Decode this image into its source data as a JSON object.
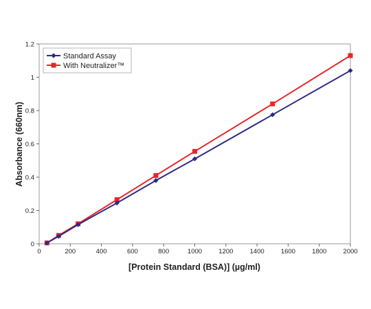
{
  "chart_data": {
    "type": "line",
    "xlabel": "[Protein Standard (BSA)] (µg/ml)",
    "ylabel": "Absorbance (660nm)",
    "xlim": [
      0,
      2000
    ],
    "ylim": [
      0,
      1.2
    ],
    "xticks": [
      0,
      200,
      400,
      600,
      800,
      1000,
      1200,
      1400,
      1600,
      1800,
      2000
    ],
    "yticks": [
      0,
      0.2,
      0.4,
      0.6,
      0.8,
      1,
      1.2
    ],
    "xtick_labels": [
      "0",
      "200",
      "400",
      "600",
      "800",
      "1000",
      "1200",
      "1400",
      "1600",
      "1800",
      "2000"
    ],
    "ytick_labels": [
      "0",
      "0.2",
      "0.4",
      "0.6",
      "0.8",
      "1",
      "1.2"
    ],
    "grid": false,
    "legend_position": "top-left",
    "series": [
      {
        "name": "Standard Assay",
        "color": "#2e2a86",
        "marker": "diamond",
        "x": [
          50,
          125,
          250,
          500,
          750,
          1000,
          1500,
          2000
        ],
        "y": [
          0.005,
          0.045,
          0.115,
          0.245,
          0.38,
          0.51,
          0.775,
          1.04
        ]
      },
      {
        "name": "With Neutralizer™",
        "color": "#e8262a",
        "marker": "square",
        "x": [
          50,
          125,
          250,
          500,
          750,
          1000,
          1500,
          2000
        ],
        "y": [
          0.005,
          0.05,
          0.12,
          0.265,
          0.41,
          0.555,
          0.84,
          1.13
        ]
      }
    ]
  }
}
